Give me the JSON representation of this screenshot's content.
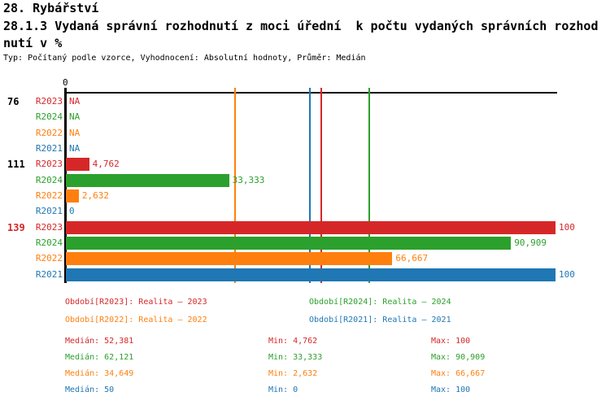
{
  "header": {
    "title_line1": "28. Rybářství",
    "title_line2": "28.1.3 Vydaná správní rozhodnutí z moci úřední  k počtu vydaných správních rozhod",
    "title_line3": "nutí v %",
    "meta_line": "Typ: Počítaný podle vzorce, Vyhodnocení: Absolutní hodnoty, Průměr: Medián"
  },
  "colors": {
    "R2023": "#d62728",
    "R2024": "#2ca02c",
    "R2022": "#ff7f0e",
    "R2021": "#1f77b4",
    "axis": "#000000",
    "group_label_default": "#000000",
    "group_label_highlight": "#d62728"
  },
  "chart_data": {
    "type": "bar",
    "orientation": "horizontal",
    "xlim": [
      0,
      100
    ],
    "x_tick_labels": [
      "0"
    ],
    "grid": false,
    "series_order": [
      "R2023",
      "R2024",
      "R2022",
      "R2021"
    ],
    "groups": [
      {
        "label": "76",
        "highlight": false,
        "bars": [
          {
            "series": "R2023",
            "value": null,
            "text": "NA"
          },
          {
            "series": "R2024",
            "value": null,
            "text": "NA"
          },
          {
            "series": "R2022",
            "value": null,
            "text": "NA"
          },
          {
            "series": "R2021",
            "value": null,
            "text": "NA"
          }
        ]
      },
      {
        "label": "111",
        "highlight": false,
        "bars": [
          {
            "series": "R2023",
            "value": 4.762,
            "text": "4,762"
          },
          {
            "series": "R2024",
            "value": 33.333,
            "text": "33,333"
          },
          {
            "series": "R2022",
            "value": 2.632,
            "text": "2,632"
          },
          {
            "series": "R2021",
            "value": 0,
            "text": "0"
          }
        ]
      },
      {
        "label": "139",
        "highlight": true,
        "bars": [
          {
            "series": "R2023",
            "value": 100,
            "text": "100"
          },
          {
            "series": "R2024",
            "value": 90.909,
            "text": "90,909"
          },
          {
            "series": "R2022",
            "value": 66.667,
            "text": "66,667"
          },
          {
            "series": "R2021",
            "value": 100,
            "text": "100"
          }
        ]
      }
    ],
    "median_lines": [
      {
        "series": "R2023",
        "value": 52.381
      },
      {
        "series": "R2024",
        "value": 62.121
      },
      {
        "series": "R2022",
        "value": 34.649
      },
      {
        "series": "R2021",
        "value": 50
      }
    ]
  },
  "legend": {
    "items": [
      {
        "series": "R2023",
        "label": "Období[R2023]: Realita – 2023",
        "col": 0,
        "row": 0
      },
      {
        "series": "R2024",
        "label": "Období[R2024]: Realita – 2024",
        "col": 1,
        "row": 0
      },
      {
        "series": "R2022",
        "label": "Období[R2022]: Realita – 2022",
        "col": 0,
        "row": 1
      },
      {
        "series": "R2021",
        "label": "Období[R2021]: Realita – 2021",
        "col": 1,
        "row": 1
      }
    ]
  },
  "stats": {
    "median_label": "Medián",
    "min_label": "Min",
    "max_label": "Max",
    "rows": [
      {
        "series": "R2023",
        "median": "52,381",
        "min": "4,762",
        "max": "100"
      },
      {
        "series": "R2024",
        "median": "62,121",
        "min": "33,333",
        "max": "90,909"
      },
      {
        "series": "R2022",
        "median": "34,649",
        "min": "2,632",
        "max": "66,667"
      },
      {
        "series": "R2021",
        "median": "50",
        "min": "0",
        "max": "100"
      }
    ]
  }
}
